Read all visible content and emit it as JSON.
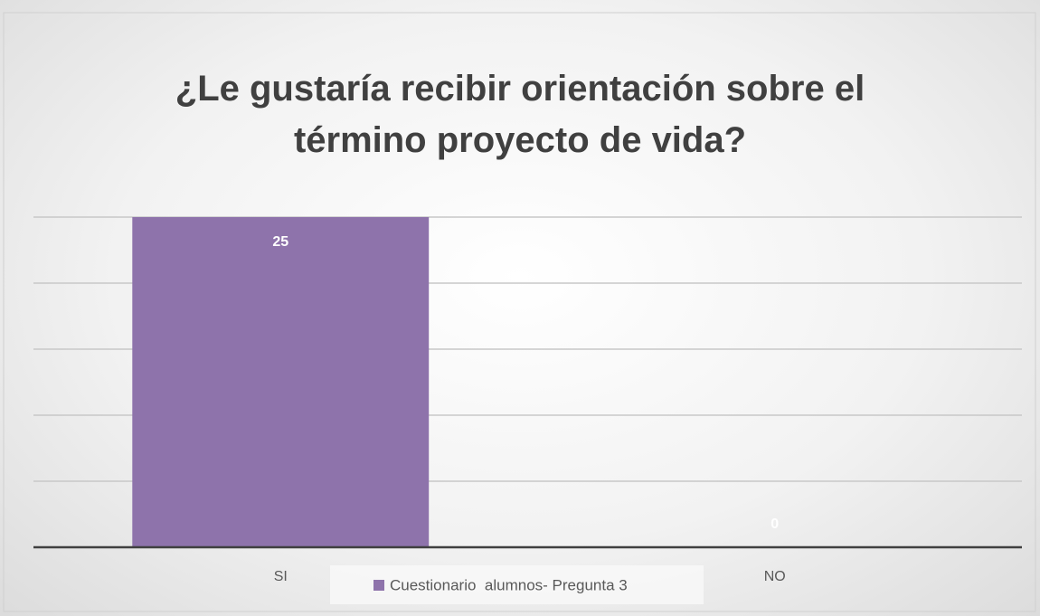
{
  "chart_data": {
    "type": "bar",
    "title": "¿Le gustaría recibir orientación sobre el término proyecto de vida?",
    "categories": [
      "SI",
      "NO"
    ],
    "series": [
      {
        "name": "Cuestionario  alumnos- Pregunta 3",
        "color": "#8e73ab",
        "values": [
          25,
          0
        ]
      }
    ],
    "ylim": [
      0,
      25
    ],
    "yticks": [
      0,
      5,
      10,
      15,
      20,
      25
    ],
    "grid": true,
    "ytick_labels": false,
    "legend": "bottom"
  }
}
